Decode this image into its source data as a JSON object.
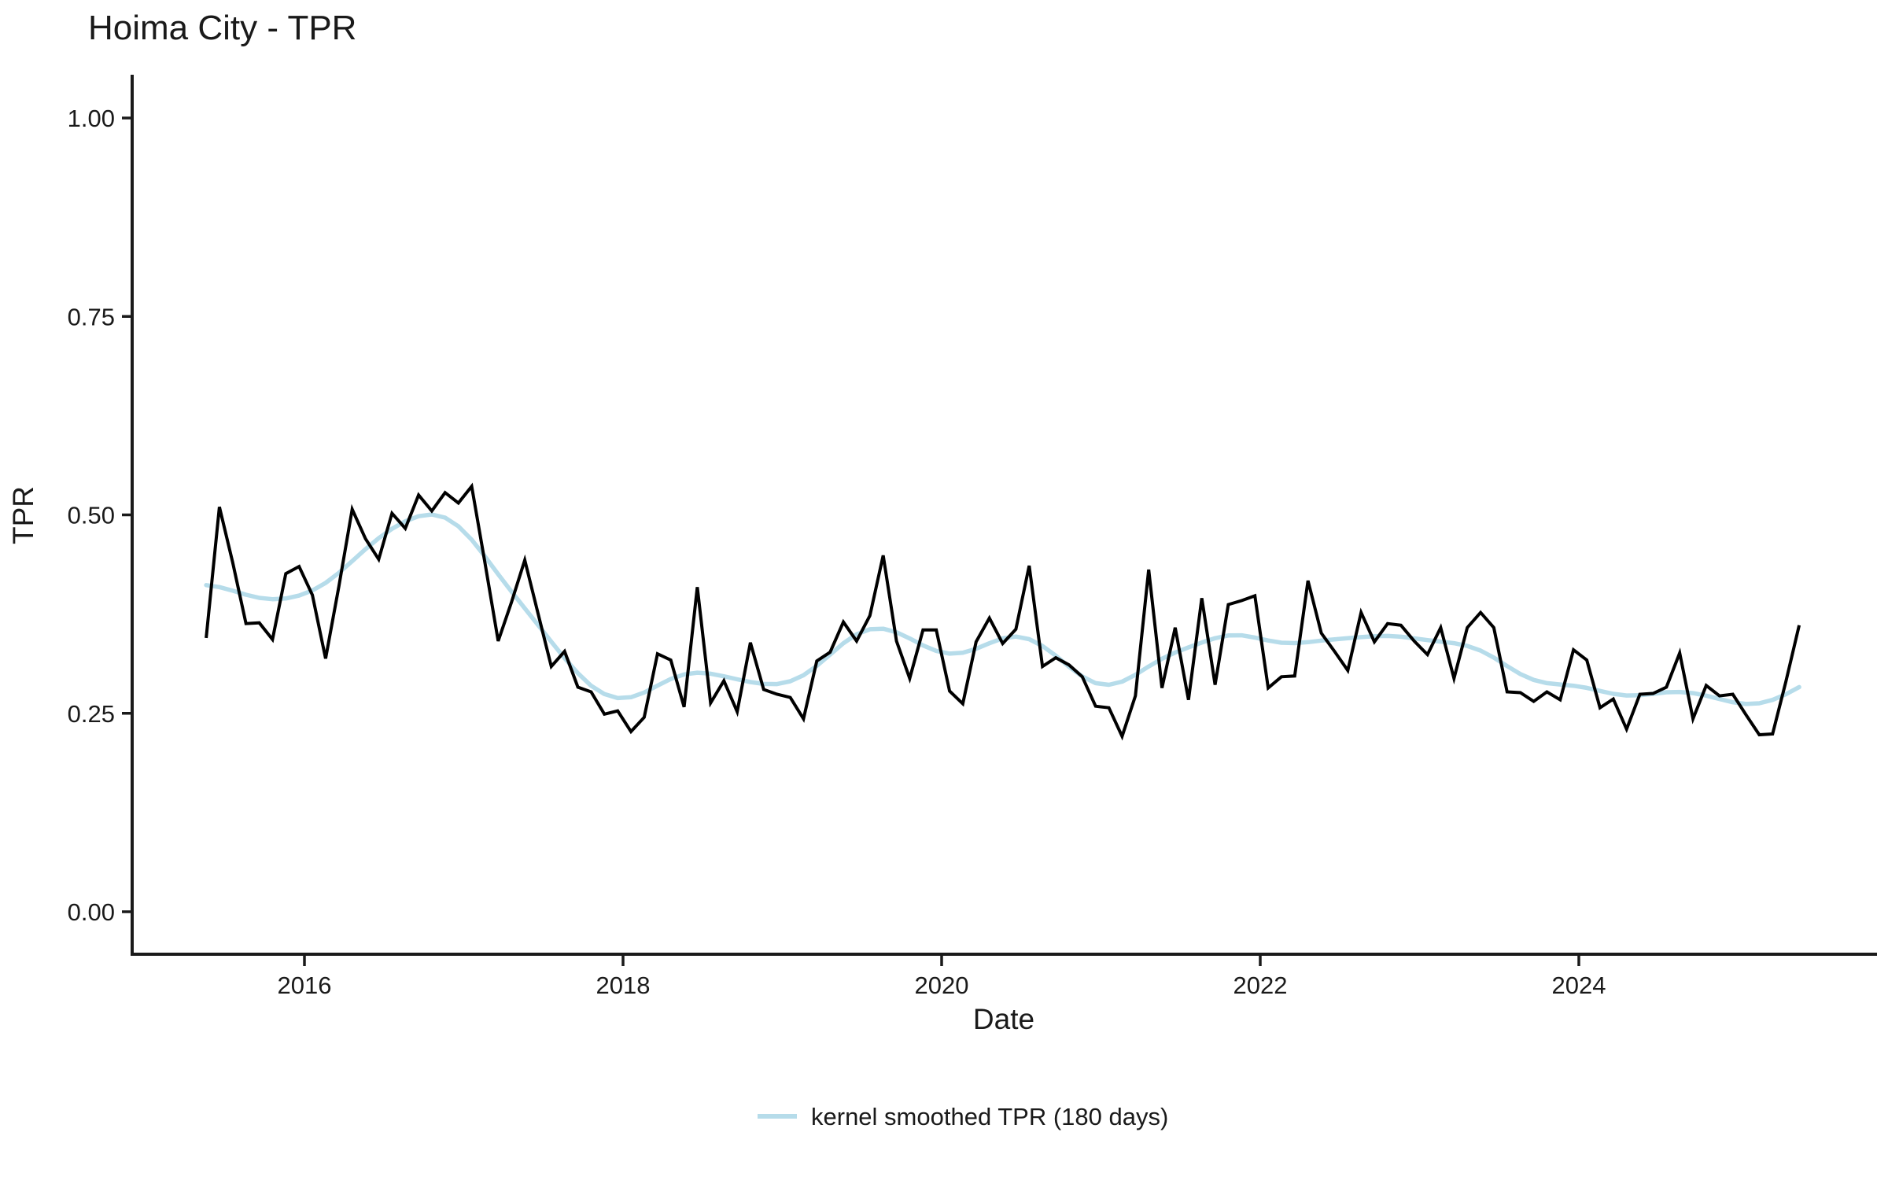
{
  "page": {
    "background": "#ffffff"
  },
  "chart": {
    "title": "Hoima City - TPR",
    "x_axis": {
      "label": "Date",
      "tick_labels": [
        "2016",
        "2018",
        "2020",
        "2022",
        "2024"
      ],
      "tick_years": [
        2016,
        2018,
        2020,
        2022,
        2024
      ]
    },
    "y_axis": {
      "label": "TPR",
      "tick_labels": [
        "0.00",
        "0.25",
        "0.50",
        "0.75",
        "1.00"
      ],
      "tick_values": [
        0,
        0.25,
        0.5,
        0.75,
        1
      ]
    },
    "legend": {
      "items": [
        {
          "label": "kernel smoothed TPR (180 days)",
          "color": "#b6dcea",
          "shape": "line"
        }
      ]
    },
    "colors": {
      "raw_line": "#000000",
      "smoothed_line": "#b6dcea",
      "axis": "#1a1a1a",
      "text": "#1a1a1a"
    }
  },
  "chart_data": {
    "type": "line",
    "title": "Hoima City - TPR",
    "xlabel": "Date",
    "ylabel": "TPR",
    "ylim": [
      0,
      1
    ],
    "grid": false,
    "legend_position": "bottom",
    "x_start_year": 2015.383,
    "x_step_years": 0.0833333,
    "start_month": "2015-05",
    "end_month": "2025-05",
    "smoothing_kernel_days": 180,
    "series": [
      {
        "name": "TPR",
        "color": "#000000",
        "values": [
          0.345,
          0.51,
          0.44,
          0.363,
          0.364,
          0.343,
          0.426,
          0.435,
          0.399,
          0.319,
          0.41,
          0.507,
          0.47,
          0.444,
          0.502,
          0.483,
          0.525,
          0.505,
          0.528,
          0.515,
          0.536,
          0.44,
          0.341,
          0.39,
          0.443,
          0.376,
          0.309,
          0.328,
          0.283,
          0.277,
          0.249,
          0.253,
          0.227,
          0.245,
          0.325,
          0.317,
          0.258,
          0.409,
          0.263,
          0.291,
          0.252,
          0.339,
          0.28,
          0.274,
          0.27,
          0.243,
          0.316,
          0.327,
          0.365,
          0.341,
          0.373,
          0.449,
          0.341,
          0.294,
          0.355,
          0.355,
          0.278,
          0.262,
          0.34,
          0.37,
          0.338,
          0.356,
          0.436,
          0.309,
          0.32,
          0.311,
          0.296,
          0.259,
          0.257,
          0.221,
          0.272,
          0.431,
          0.282,
          0.358,
          0.267,
          0.395,
          0.286,
          0.387,
          0.392,
          0.398,
          0.282,
          0.296,
          0.297,
          0.417,
          0.351,
          0.328,
          0.304,
          0.377,
          0.34,
          0.363,
          0.361,
          0.341,
          0.324,
          0.358,
          0.294,
          0.358,
          0.377,
          0.358,
          0.277,
          0.276,
          0.265,
          0.277,
          0.267,
          0.33,
          0.317,
          0.257,
          0.268,
          0.23,
          0.274,
          0.275,
          0.283,
          0.326,
          0.243,
          0.285,
          0.272,
          0.274,
          0.248,
          0.223,
          0.224,
          0.29,
          0.361
        ]
      },
      {
        "name": "kernel smoothed TPR (180 days)",
        "color": "#b6dcea",
        "derived_from": "TPR",
        "method": "gaussian kernel smoothing, 180-day bandwidth"
      }
    ]
  }
}
